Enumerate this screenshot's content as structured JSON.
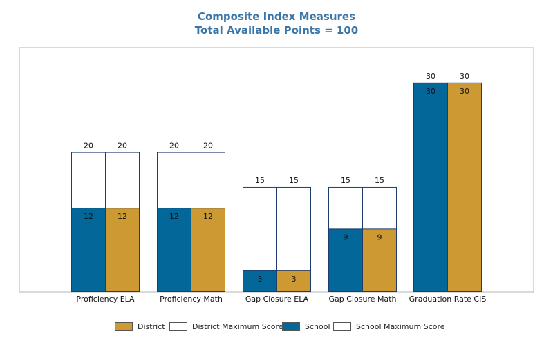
{
  "colors": {
    "school": "#04679a",
    "district": "#cc9933",
    "max_fill": "#ffffff",
    "bar_border": "#1f3c6e",
    "title": "#3a76a8",
    "frame": "#b5b5b5"
  },
  "legend": {
    "items": [
      {
        "label": "District",
        "color": "#cc9933"
      },
      {
        "label": "District Maximum Score",
        "color": "#ffffff"
      },
      {
        "label": "School",
        "color": "#04679a"
      },
      {
        "label": "School Maximum Score",
        "color": "#ffffff"
      }
    ]
  },
  "chart_data": {
    "type": "bar",
    "title": "Composite Index Measures",
    "subtitle": "Total Available Points = 100",
    "categories": [
      "Proficiency ELA",
      "Proficiency Math",
      "Gap Closure ELA",
      "Gap Closure Math",
      "Graduation Rate CIS"
    ],
    "series": [
      {
        "name": "School",
        "values": [
          12,
          12,
          3,
          9,
          30
        ]
      },
      {
        "name": "School Maximum Score",
        "values": [
          20,
          20,
          15,
          15,
          30
        ]
      },
      {
        "name": "District",
        "values": [
          12,
          12,
          3,
          9,
          30
        ]
      },
      {
        "name": "District Maximum Score",
        "values": [
          20,
          20,
          15,
          15,
          30
        ]
      }
    ],
    "ylim": [
      0,
      38
    ],
    "grid": false,
    "legend_position": "bottom"
  }
}
